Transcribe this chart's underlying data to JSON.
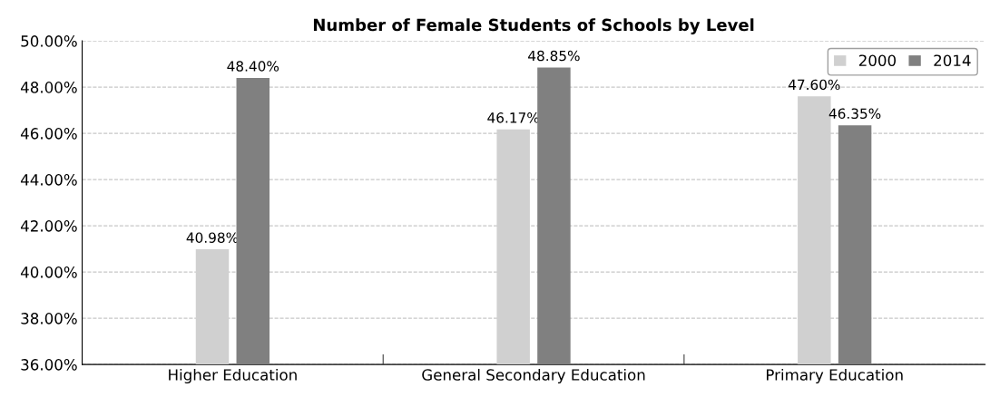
{
  "chart_data": {
    "type": "bar",
    "title": "Number of Female Students of Schools by Level",
    "categories": [
      "Higher Education",
      "General Secondary Education",
      "Primary Education"
    ],
    "series": [
      {
        "name": "2000",
        "color": "#d0d0d0",
        "values": [
          40.98,
          46.17,
          47.6
        ],
        "value_labels": [
          "40.98%",
          "46.17%",
          "47.60%"
        ]
      },
      {
        "name": "2014",
        "color": "#808080",
        "values": [
          48.4,
          48.85,
          46.35
        ],
        "value_labels": [
          "48.40%",
          "48.85%",
          "46.35%"
        ]
      }
    ],
    "ylim": [
      36,
      50
    ],
    "yticks": [
      {
        "value": 36,
        "label": "36.00%"
      },
      {
        "value": 38,
        "label": "38.00%"
      },
      {
        "value": 40,
        "label": "40.00%"
      },
      {
        "value": 42,
        "label": "42.00%"
      },
      {
        "value": 44,
        "label": "44.00%"
      },
      {
        "value": 46,
        "label": "46.00%"
      },
      {
        "value": 48,
        "label": "48.00%"
      },
      {
        "value": 50,
        "label": "50.00%"
      }
    ],
    "grid": "y",
    "legend": "top right"
  }
}
